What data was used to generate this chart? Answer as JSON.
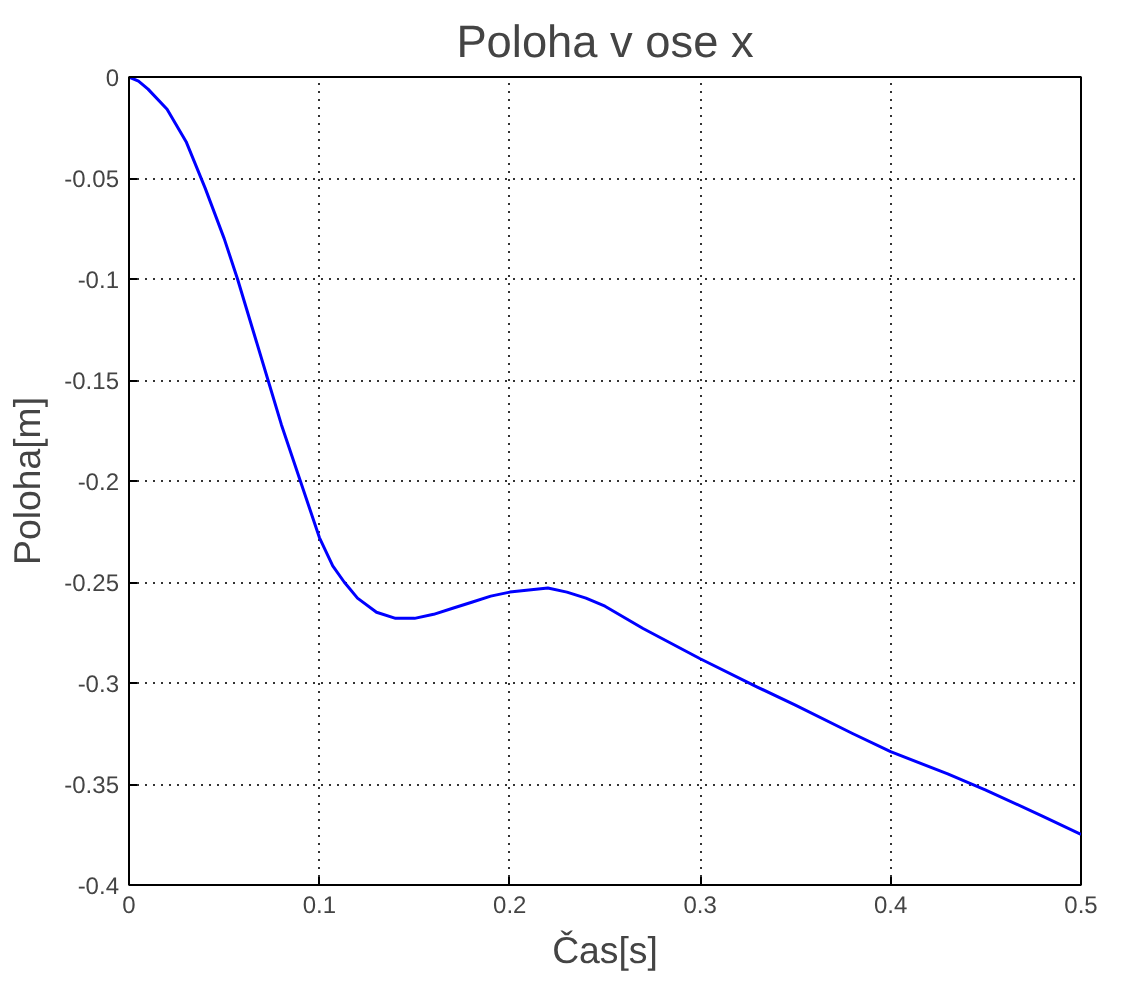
{
  "chart_data": {
    "type": "line",
    "title": "Poloha v ose x",
    "xlabel": "Čas[s]",
    "ylabel": "Poloha[m]",
    "series": [
      {
        "color": "#0000ff",
        "x": [
          0,
          0.005,
          0.01,
          0.02,
          0.03,
          0.04,
          0.05,
          0.057,
          0.065,
          0.073,
          0.08,
          0.09,
          0.1,
          0.107,
          0.113,
          0.12,
          0.13,
          0.14,
          0.15,
          0.16,
          0.17,
          0.18,
          0.19,
          0.2,
          0.21,
          0.22,
          0.23,
          0.24,
          0.25,
          0.27,
          0.3,
          0.33,
          0.35,
          0.38,
          0.4,
          0.43,
          0.45,
          0.48,
          0.5
        ],
        "values": [
          0,
          -0.002,
          -0.006,
          -0.016,
          -0.032,
          -0.055,
          -0.08,
          -0.1,
          -0.125,
          -0.15,
          -0.172,
          -0.2,
          -0.228,
          -0.242,
          -0.25,
          -0.258,
          -0.265,
          -0.268,
          -0.268,
          -0.266,
          -0.263,
          -0.26,
          -0.257,
          -0.255,
          -0.254,
          -0.253,
          -0.255,
          -0.258,
          -0.262,
          -0.273,
          -0.288,
          -0.302,
          -0.311,
          -0.325,
          -0.334,
          -0.345,
          -0.353,
          -0.366,
          -0.375
        ]
      }
    ],
    "xlim": [
      0,
      0.5
    ],
    "ylim": [
      -0.4,
      0
    ],
    "xticks": [
      0,
      0.1,
      0.2,
      0.3,
      0.4,
      0.5
    ],
    "yticks": [
      -0.4,
      -0.35,
      -0.3,
      -0.25,
      -0.2,
      -0.15,
      -0.1,
      -0.05,
      0
    ],
    "grid": true,
    "line_style": "solid"
  }
}
